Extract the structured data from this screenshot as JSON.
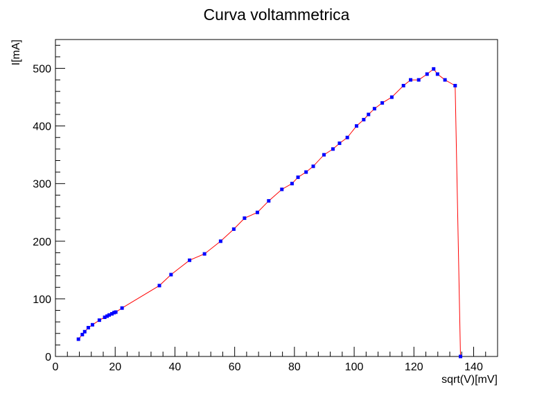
{
  "chart_data": {
    "type": "line",
    "title": "Curva voltammetrica",
    "xlabel": "sqrt(V)[mV]",
    "ylabel": "I[mA]",
    "xlim": [
      0,
      148
    ],
    "ylim": [
      0,
      550
    ],
    "x_ticks": [
      0,
      20,
      40,
      60,
      80,
      100,
      120,
      140
    ],
    "y_ticks": [
      0,
      100,
      200,
      300,
      400,
      500
    ],
    "x_tick_labels": [
      "0",
      "20",
      "40",
      "60",
      "80",
      "100",
      "120",
      "140"
    ],
    "y_tick_labels": [
      "0",
      "100",
      "200",
      "300",
      "400",
      "500"
    ],
    "grid": false,
    "line_color": "#ff0000",
    "marker_color": "#0000ff",
    "series": [
      {
        "x": [
          7.7,
          9.0,
          9.8,
          11.0,
          12.4,
          14.7,
          16.5,
          17.3,
          18.0,
          18.9,
          19.6,
          20.2,
          22.3,
          34.8,
          38.7,
          44.9,
          49.9,
          55.3,
          59.7,
          63.3,
          67.6,
          71.4,
          75.8,
          79.2,
          81.2,
          83.9,
          86.3,
          89.9,
          92.9,
          95.1,
          97.7,
          100.8,
          103.2,
          104.8,
          106.8,
          109.4,
          112.6,
          116.5,
          118.9,
          121.6,
          124.4,
          126.6,
          127.9,
          130.4,
          133.8,
          135.6
        ],
        "y": [
          30,
          38,
          43,
          50,
          55,
          63,
          68,
          70,
          72,
          74,
          76,
          77,
          84,
          123,
          142,
          167,
          178,
          200,
          221,
          240,
          250,
          270,
          290,
          300,
          311,
          320,
          330,
          350,
          360,
          370,
          380,
          400,
          411,
          420,
          430,
          440,
          450,
          470,
          480,
          480,
          490,
          499,
          490,
          480,
          470,
          0
        ]
      }
    ]
  }
}
